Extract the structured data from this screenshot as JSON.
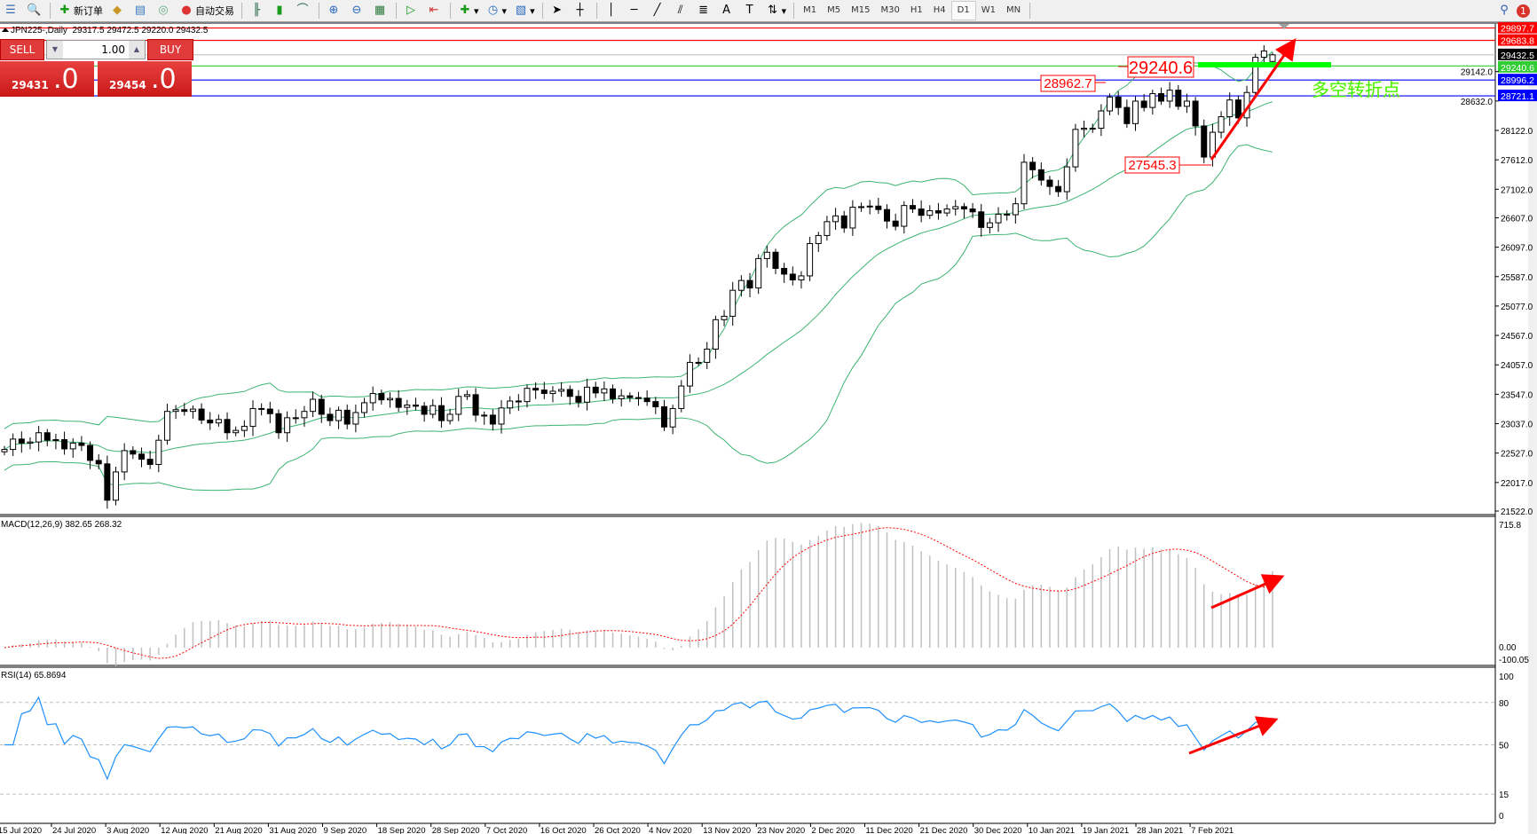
{
  "toolbar": {
    "new_order_label": "新订单",
    "auto_trading_label": "自动交易",
    "icons": [
      "list-icon",
      "print-preview-icon",
      "new-order-icon",
      "experts-icon",
      "signals-icon",
      "market-icon",
      "auto-trading-icon",
      "bar-chart-icon",
      "candlestick-icon",
      "line-chart-icon",
      "zoom-in-icon",
      "zoom-out-icon",
      "tile-windows-icon",
      "autoscroll-icon",
      "chart-shift-icon",
      "indicators-icon",
      "periods-icon",
      "templates-icon",
      "cursor-icon",
      "crosshair-icon",
      "vertical-line-icon",
      "horizontal-line-icon",
      "trendline-icon",
      "fibonacci-fan-icon",
      "fibonacci-icon",
      "text-icon",
      "text-label-icon",
      "arrows-icon"
    ],
    "timeframes": [
      "M1",
      "M5",
      "M15",
      "M30",
      "H1",
      "H4",
      "D1",
      "W1",
      "MN"
    ],
    "active_timeframe": "D1",
    "notification_count": "1"
  },
  "trade_panel": {
    "sell_label": "SELL",
    "buy_label": "BUY",
    "lot": "1.00",
    "sell_price_small": "29431",
    "sell_price_big": ".0",
    "buy_price_small": "29454",
    "buy_price_big": ".0"
  },
  "chart_data": {
    "type": "candlestick",
    "header": "JPN225-,Daily  29317.5 29472.5 29220.0 29432.5",
    "symbol": "JPN225-",
    "timeframe": "Daily",
    "last_bar": {
      "open": 29317.5,
      "high": 29472.5,
      "low": 29220.0,
      "close": 29432.5
    },
    "close": [
      22590,
      22770,
      22700,
      22720,
      22880,
      22750,
      22760,
      22600,
      22700,
      22660,
      22400,
      22340,
      21710,
      22200,
      22570,
      22510,
      22420,
      22330,
      22750,
      23250,
      23280,
      23250,
      23290,
      23100,
      23050,
      23110,
      22880,
      22920,
      22990,
      23300,
      23290,
      23210,
      22880,
      23140,
      23140,
      23250,
      23460,
      23200,
      23090,
      23270,
      23030,
      23230,
      23400,
      23560,
      23450,
      23475,
      23320,
      23360,
      23340,
      23200,
      23350,
      23090,
      23200,
      23510,
      23540,
      23185,
      23185,
      23030,
      23310,
      23430,
      23420,
      23650,
      23620,
      23560,
      23600,
      23630,
      23510,
      23410,
      23670,
      23570,
      23640,
      23470,
      23520,
      23490,
      23480,
      23420,
      23330,
      22980,
      23300,
      23690,
      24100,
      24100,
      24330,
      24840,
      24900,
      25350,
      25520,
      25390,
      25900,
      26010,
      25730,
      25630,
      25530,
      25600,
      26160,
      26300,
      26540,
      26640,
      26430,
      26790,
      26800,
      26810,
      26750,
      26550,
      26460,
      26820,
      26760,
      26650,
      26730,
      26690,
      26760,
      26800,
      26760,
      26710,
      26440,
      26520,
      26670,
      26660,
      26850,
      27570,
      27440,
      27260,
      27150,
      27060,
      27490,
      28140,
      28160,
      28160,
      28460,
      28700,
      28520,
      28240,
      28630,
      28520,
      28760,
      28630,
      28820,
      28540,
      28630,
      28200,
      27660,
      28090,
      28360,
      28650,
      28340,
      28780,
      29390,
      29500,
      29432.5
    ],
    "price_ticks": [
      21522.0,
      22017.0,
      22527.0,
      23037.0,
      23547.0,
      24057.0,
      24567.0,
      25077.0,
      25587.0,
      26097.0,
      26607.0,
      27102.0,
      27612.0,
      28122.0,
      28632.0,
      29142.0
    ],
    "date_labels": [
      "15 Jul 2020",
      "24 Jul 2020",
      "3 Aug 2020",
      "12 Aug 2020",
      "21 Aug 2020",
      "31 Aug 2020",
      "9 Sep 2020",
      "18 Sep 2020",
      "28 Sep 2020",
      "7 Oct 2020",
      "16 Oct 2020",
      "26 Oct 2020",
      "4 Nov 2020",
      "13 Nov 2020",
      "23 Nov 2020",
      "2 Dec 2020",
      "11 Dec 2020",
      "21 Dec 2020",
      "30 Dec 2020",
      "10 Jan 2021",
      "19 Jan 2021",
      "28 Jan 2021",
      "7 Feb 2021"
    ],
    "price_range": [
      21522.0,
      29897.7
    ],
    "levels": [
      {
        "value": "29897.7",
        "color": "#ff0000"
      },
      {
        "value": "29683.8",
        "color": "#ff0000"
      },
      {
        "value": "29432.5",
        "color": "#c0c0c0",
        "label_bg": "#000000"
      },
      {
        "value": "29240.6",
        "color": "#32cd32"
      },
      {
        "value": "28996.2",
        "color": "#0000ff"
      },
      {
        "value": "28721.1",
        "color": "#0000ff"
      }
    ],
    "annotations": {
      "label_main": "29240.6",
      "label_high": "28962.7",
      "label_low": "27545.3",
      "turning_point_text": "多空转折点"
    },
    "bollinger": {
      "period": 20,
      "deviation": 2,
      "color": "#3cb371"
    },
    "macd": {
      "header": "MACD(12,26,9) 382.65 268.32",
      "scale_max": "715.8",
      "zero": "0.00",
      "scale_min": "-100.05",
      "histogram_color": "#c0c0c0",
      "signal_color": "#ff0000"
    },
    "rsi": {
      "header": "RSI(14) 65.8694",
      "levels": [
        "100",
        "80",
        "50",
        "15",
        "0"
      ],
      "color": "#1e90ff"
    },
    "colors": {
      "arrow": "#ff0000",
      "turning_line": "#00ff00",
      "text_green": "#00ee00"
    }
  }
}
